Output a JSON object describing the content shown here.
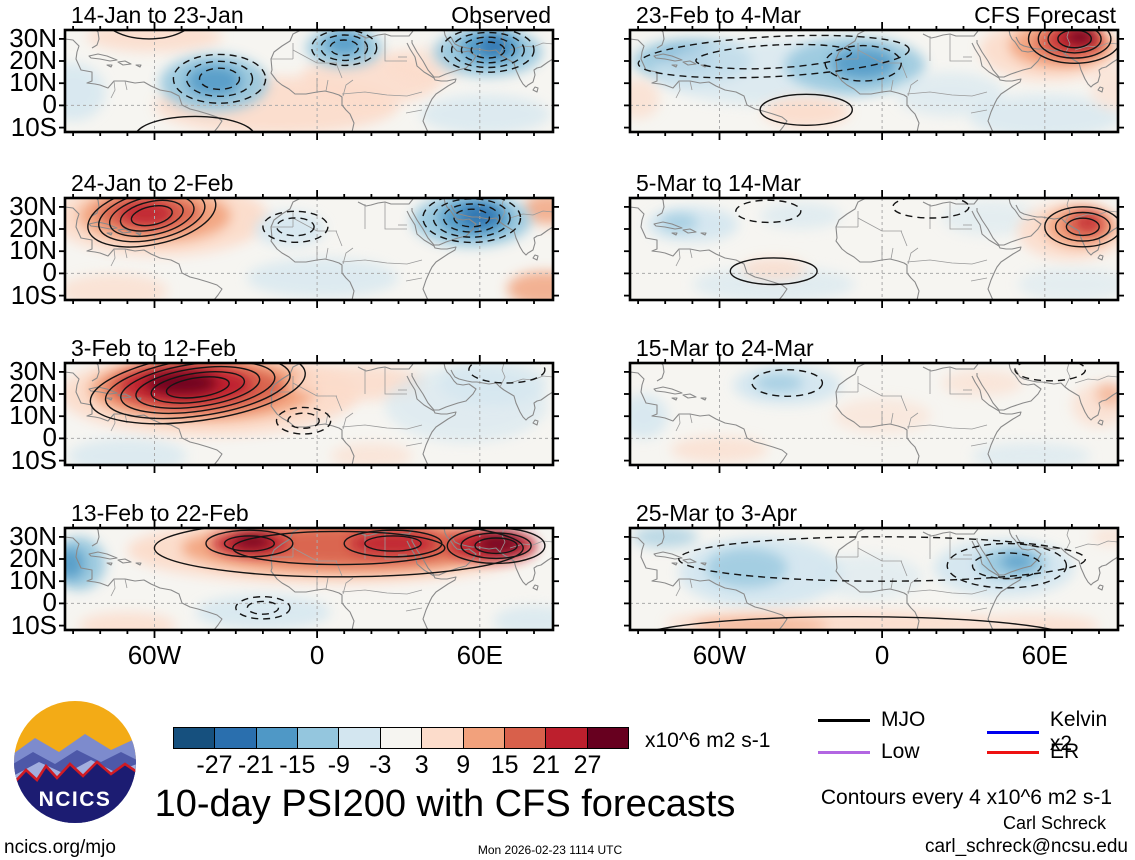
{
  "logo": {
    "text": "NCICS"
  },
  "legend": {
    "items": [
      {
        "label": "MJO",
        "color": "#000000"
      },
      {
        "label": "Kelvin x2",
        "color": "#0000ee"
      },
      {
        "label": "Low",
        "color": "#b266e2"
      },
      {
        "label": "ER",
        "color": "#ee1111"
      }
    ]
  },
  "footer": {
    "contours_note": "Contours every 4 x10^6 m2 s-1",
    "author": "Carl Schreck",
    "email": "carl_schreck@ncsu.edu",
    "site": "ncics.org/mjo",
    "timestamp": "Mon 2026-02-23 1114 UTC"
  },
  "chart_data": {
    "type": "heatmap",
    "title": "10-day PSI200 with CFS forecasts",
    "units": "x10^6 m2 s-1",
    "contour_interval_note": "Contours every 4 x10^6 m2 s-1",
    "domain": {
      "lon_min": -93,
      "lon_max": 87,
      "lat_min": -12,
      "lat_max": 34
    },
    "lat_ticks": [
      {
        "lat": 30,
        "label": "30N"
      },
      {
        "lat": 20,
        "label": "20N"
      },
      {
        "lat": 10,
        "label": "10N"
      },
      {
        "lat": 0,
        "label": "0"
      },
      {
        "lat": -10,
        "label": "10S"
      }
    ],
    "lon_ticks": [
      {
        "lon": -60,
        "label": "60W"
      },
      {
        "lon": 0,
        "label": "0"
      },
      {
        "lon": 60,
        "label": "60E"
      }
    ],
    "colorbar_levels": [
      -27,
      -21,
      -15,
      -9,
      -3,
      3,
      9,
      15,
      21,
      27
    ],
    "colorbar_colors": [
      "#16507e",
      "#2a6fae",
      "#4f98c6",
      "#94c6de",
      "#d3e6f0",
      "#f6f5f1",
      "#fcdccb",
      "#f2a17c",
      "#d8604b",
      "#bd1f2d",
      "#67001f"
    ],
    "panels": [
      {
        "title": "14-Jan to 23-Jan",
        "tag": "Observed",
        "col": 0,
        "row": 0,
        "b": [
          [
            -15,
            0,
            45,
            13,
            6,
            0.9
          ],
          [
            -60,
            31,
            25,
            7,
            6,
            0.85
          ],
          [
            20,
            12,
            26,
            12,
            6,
            0.85
          ],
          [
            62,
            -4,
            24,
            9,
            -6,
            0.7
          ],
          [
            -90,
            6,
            12,
            13,
            -6,
            0.8
          ],
          [
            40,
            18,
            14,
            8,
            6,
            0.6
          ],
          [
            -38,
            10,
            20,
            13,
            -12,
            0.9
          ],
          [
            -38,
            11,
            10,
            7,
            -18,
            0.85
          ],
          [
            10,
            26,
            14,
            9,
            -12,
            0.9
          ],
          [
            10,
            28,
            7,
            5,
            -18,
            0.85
          ],
          [
            63,
            24,
            20,
            11,
            -12,
            0.9
          ],
          [
            64,
            26,
            11,
            7,
            -18,
            0.9
          ],
          [
            65,
            27,
            5,
            4,
            -24,
            0.85
          ]
        ],
        "c": [
          [
            -36,
            12,
            17,
            11,
            3,
            1,
            0
          ],
          [
            10,
            26,
            12,
            8,
            3,
            1,
            0
          ],
          [
            63,
            25,
            17,
            10,
            4,
            1,
            0
          ],
          [
            -45,
            -14,
            22,
            9,
            1,
            0,
            0
          ],
          [
            -62,
            39,
            16,
            9,
            1,
            0,
            0
          ]
        ]
      },
      {
        "title": "24-Jan to 2-Feb",
        "tag": "",
        "col": 0,
        "row": 1,
        "b": [
          [
            -58,
            25,
            40,
            17,
            6,
            0.95
          ],
          [
            -60,
            26,
            28,
            12,
            12,
            0.9
          ],
          [
            -62,
            27,
            19,
            8,
            18,
            0.9
          ],
          [
            -63,
            27,
            10,
            5,
            24,
            0.85
          ],
          [
            84,
            -7,
            14,
            8,
            12,
            0.8
          ],
          [
            85,
            29,
            9,
            7,
            12,
            0.8
          ],
          [
            -75,
            -8,
            20,
            8,
            6,
            0.7
          ],
          [
            2,
            -2,
            28,
            9,
            -6,
            0.7
          ],
          [
            -10,
            20,
            13,
            8,
            -6,
            0.85
          ],
          [
            57,
            24,
            22,
            12,
            -12,
            0.9
          ],
          [
            58,
            25,
            13,
            8,
            -18,
            0.9
          ],
          [
            60,
            26,
            7,
            5,
            -24,
            0.85
          ]
        ],
        "c": [
          [
            -61,
            26,
            24,
            13,
            5,
            0,
            -12
          ],
          [
            -8,
            21,
            12,
            7,
            2,
            1,
            0
          ],
          [
            57,
            25,
            18,
            11,
            4,
            1,
            0
          ]
        ]
      },
      {
        "title": "3-Feb to 12-Feb",
        "tag": "",
        "col": 0,
        "row": 2,
        "b": [
          [
            -40,
            20,
            55,
            19,
            6,
            0.95
          ],
          [
            -42,
            22,
            42,
            14,
            12,
            0.95
          ],
          [
            -45,
            23,
            33,
            11,
            18,
            0.95
          ],
          [
            -48,
            24,
            24,
            8,
            24,
            0.95
          ],
          [
            -50,
            25,
            13,
            5,
            30,
            0.9
          ],
          [
            15,
            25,
            25,
            8,
            6,
            0.85
          ],
          [
            55,
            15,
            30,
            17,
            -6,
            0.6
          ],
          [
            65,
            25,
            20,
            10,
            -6,
            0.7
          ],
          [
            -70,
            -8,
            22,
            8,
            -6,
            0.7
          ],
          [
            20,
            -8,
            15,
            6,
            6,
            0.6
          ]
        ],
        "c": [
          [
            -44,
            23,
            40,
            15,
            6,
            0,
            -8
          ],
          [
            -5,
            8,
            10,
            6,
            2,
            1,
            0
          ],
          [
            70,
            31,
            14,
            6,
            1,
            1,
            0
          ]
        ]
      },
      {
        "title": "13-Feb to 22-Feb",
        "tag": "",
        "col": 0,
        "row": 3,
        "b": [
          [
            5,
            24,
            75,
            15,
            6,
            0.95
          ],
          [
            10,
            25,
            60,
            12,
            12,
            0.9
          ],
          [
            15,
            26,
            48,
            9,
            18,
            0.9
          ],
          [
            -25,
            27,
            14,
            5,
            24,
            0.9
          ],
          [
            28,
            27,
            16,
            5,
            24,
            0.85
          ],
          [
            65,
            26,
            16,
            7,
            24,
            0.9
          ],
          [
            -24,
            28,
            7,
            3,
            30,
            0.85
          ],
          [
            67,
            27,
            8,
            4,
            30,
            0.85
          ],
          [
            -88,
            18,
            10,
            12,
            -12,
            0.9
          ],
          [
            -91,
            18,
            5,
            7,
            -18,
            0.85
          ],
          [
            -20,
            -4,
            25,
            8,
            -6,
            0.8
          ],
          [
            80,
            -8,
            15,
            7,
            -6,
            0.7
          ],
          [
            -70,
            -10,
            18,
            6,
            6,
            0.8
          ]
        ],
        "c": [
          [
            8,
            25,
            68,
            13,
            2,
            0,
            0
          ],
          [
            -25,
            27,
            16,
            6,
            2,
            0,
            0
          ],
          [
            28,
            27,
            18,
            6,
            2,
            0,
            0
          ],
          [
            66,
            26,
            18,
            8,
            3,
            0,
            0
          ],
          [
            -20,
            -2,
            10,
            5,
            2,
            1,
            0
          ]
        ]
      },
      {
        "title": "23-Feb to 4-Mar",
        "tag": "CFS Forecast",
        "col": 1,
        "row": 0,
        "b": [
          [
            -70,
            20,
            22,
            10,
            -12,
            0.85
          ],
          [
            -72,
            21,
            10,
            5,
            -18,
            0.6
          ],
          [
            -40,
            15,
            45,
            15,
            -6,
            0.7
          ],
          [
            -10,
            18,
            26,
            13,
            -12,
            0.85
          ],
          [
            -7,
            19,
            12,
            7,
            -18,
            0.85
          ],
          [
            25,
            5,
            20,
            10,
            -6,
            0.6
          ],
          [
            60,
            -5,
            28,
            10,
            -6,
            0.7
          ],
          [
            62,
            25,
            26,
            14,
            6,
            0.9
          ],
          [
            66,
            27,
            19,
            10,
            12,
            0.9
          ],
          [
            69,
            28,
            13,
            7,
            18,
            0.9
          ],
          [
            71,
            30,
            9,
            5,
            24,
            0.9
          ],
          [
            73,
            31,
            5,
            3,
            30,
            0.9
          ],
          [
            -28,
            -3,
            16,
            7,
            6,
            0.9
          ],
          [
            -90,
            3,
            8,
            9,
            6,
            0.7
          ],
          [
            85,
            8,
            8,
            10,
            6,
            0.6
          ]
        ],
        "c": [
          [
            -40,
            22,
            50,
            9,
            2,
            1,
            -3
          ],
          [
            -7,
            19,
            14,
            8,
            1,
            1,
            0
          ],
          [
            71,
            30,
            17,
            11,
            4,
            0,
            0
          ],
          [
            -28,
            -2,
            17,
            7,
            1,
            0,
            0
          ]
        ]
      },
      {
        "title": "5-Mar to 14-Mar",
        "tag": "",
        "col": 1,
        "row": 1,
        "b": [
          [
            -70,
            22,
            17,
            8,
            -6,
            0.9
          ],
          [
            -75,
            23,
            7,
            4,
            -12,
            0.7
          ],
          [
            -30,
            26,
            15,
            6,
            -6,
            0.6
          ],
          [
            40,
            25,
            18,
            8,
            -6,
            0.5
          ],
          [
            -40,
            -5,
            30,
            8,
            -6,
            0.6
          ],
          [
            70,
            -5,
            20,
            8,
            -6,
            0.5
          ],
          [
            -40,
            2,
            12,
            5,
            6,
            0.8
          ],
          [
            70,
            19,
            20,
            13,
            6,
            0.9
          ],
          [
            73,
            21,
            13,
            9,
            12,
            0.9
          ],
          [
            75,
            22,
            8,
            6,
            18,
            0.9
          ],
          [
            76,
            23,
            4,
            3,
            24,
            0.85
          ]
        ],
        "c": [
          [
            -42,
            28,
            12,
            5,
            1,
            1,
            0
          ],
          [
            18,
            30,
            14,
            5,
            1,
            1,
            0
          ],
          [
            -40,
            1,
            16,
            6,
            1,
            0,
            0
          ],
          [
            74,
            21,
            14,
            9,
            3,
            0,
            0
          ]
        ]
      },
      {
        "title": "15-Mar to 24-Mar",
        "tag": "",
        "col": 1,
        "row": 2,
        "b": [
          [
            -35,
            24,
            20,
            9,
            -6,
            0.9
          ],
          [
            -38,
            25,
            9,
            4,
            -12,
            0.7
          ],
          [
            -88,
            10,
            9,
            10,
            -6,
            0.8
          ],
          [
            -60,
            -5,
            18,
            6,
            6,
            0.7
          ],
          [
            0,
            10,
            18,
            8,
            6,
            0.5
          ],
          [
            37,
            25,
            15,
            6,
            6,
            0.6
          ],
          [
            80,
            15,
            10,
            10,
            6,
            0.7
          ],
          [
            84,
            20,
            5,
            5,
            12,
            0.6
          ],
          [
            55,
            -8,
            22,
            6,
            -6,
            0.6
          ]
        ],
        "c": [
          [
            62,
            31,
            13,
            5,
            1,
            1,
            0
          ],
          [
            -35,
            25,
            13,
            6,
            1,
            1,
            0
          ]
        ]
      },
      {
        "title": "25-Mar to 3-Apr",
        "tag": "",
        "col": 1,
        "row": 3,
        "b": [
          [
            -45,
            14,
            30,
            16,
            -6,
            0.9
          ],
          [
            -50,
            16,
            15,
            9,
            -12,
            0.75
          ],
          [
            -5,
            12,
            20,
            10,
            -6,
            0.5
          ],
          [
            45,
            16,
            26,
            13,
            -6,
            0.9
          ],
          [
            48,
            18,
            13,
            7,
            -12,
            0.85
          ],
          [
            50,
            19,
            6,
            4,
            -18,
            0.7
          ],
          [
            -80,
            30,
            12,
            5,
            -12,
            0.6
          ],
          [
            -20,
            -9,
            60,
            6,
            6,
            0.9
          ],
          [
            -45,
            -10,
            25,
            4,
            12,
            0.6
          ],
          [
            55,
            -10,
            25,
            5,
            6,
            0.8
          ],
          [
            85,
            30,
            8,
            4,
            6,
            0.6
          ]
        ],
        "c": [
          [
            0,
            20,
            75,
            10,
            1,
            1,
            0
          ],
          [
            46,
            17,
            22,
            10,
            2,
            1,
            0
          ],
          [
            -10,
            -16,
            80,
            10,
            1,
            0,
            0
          ]
        ]
      }
    ]
  }
}
